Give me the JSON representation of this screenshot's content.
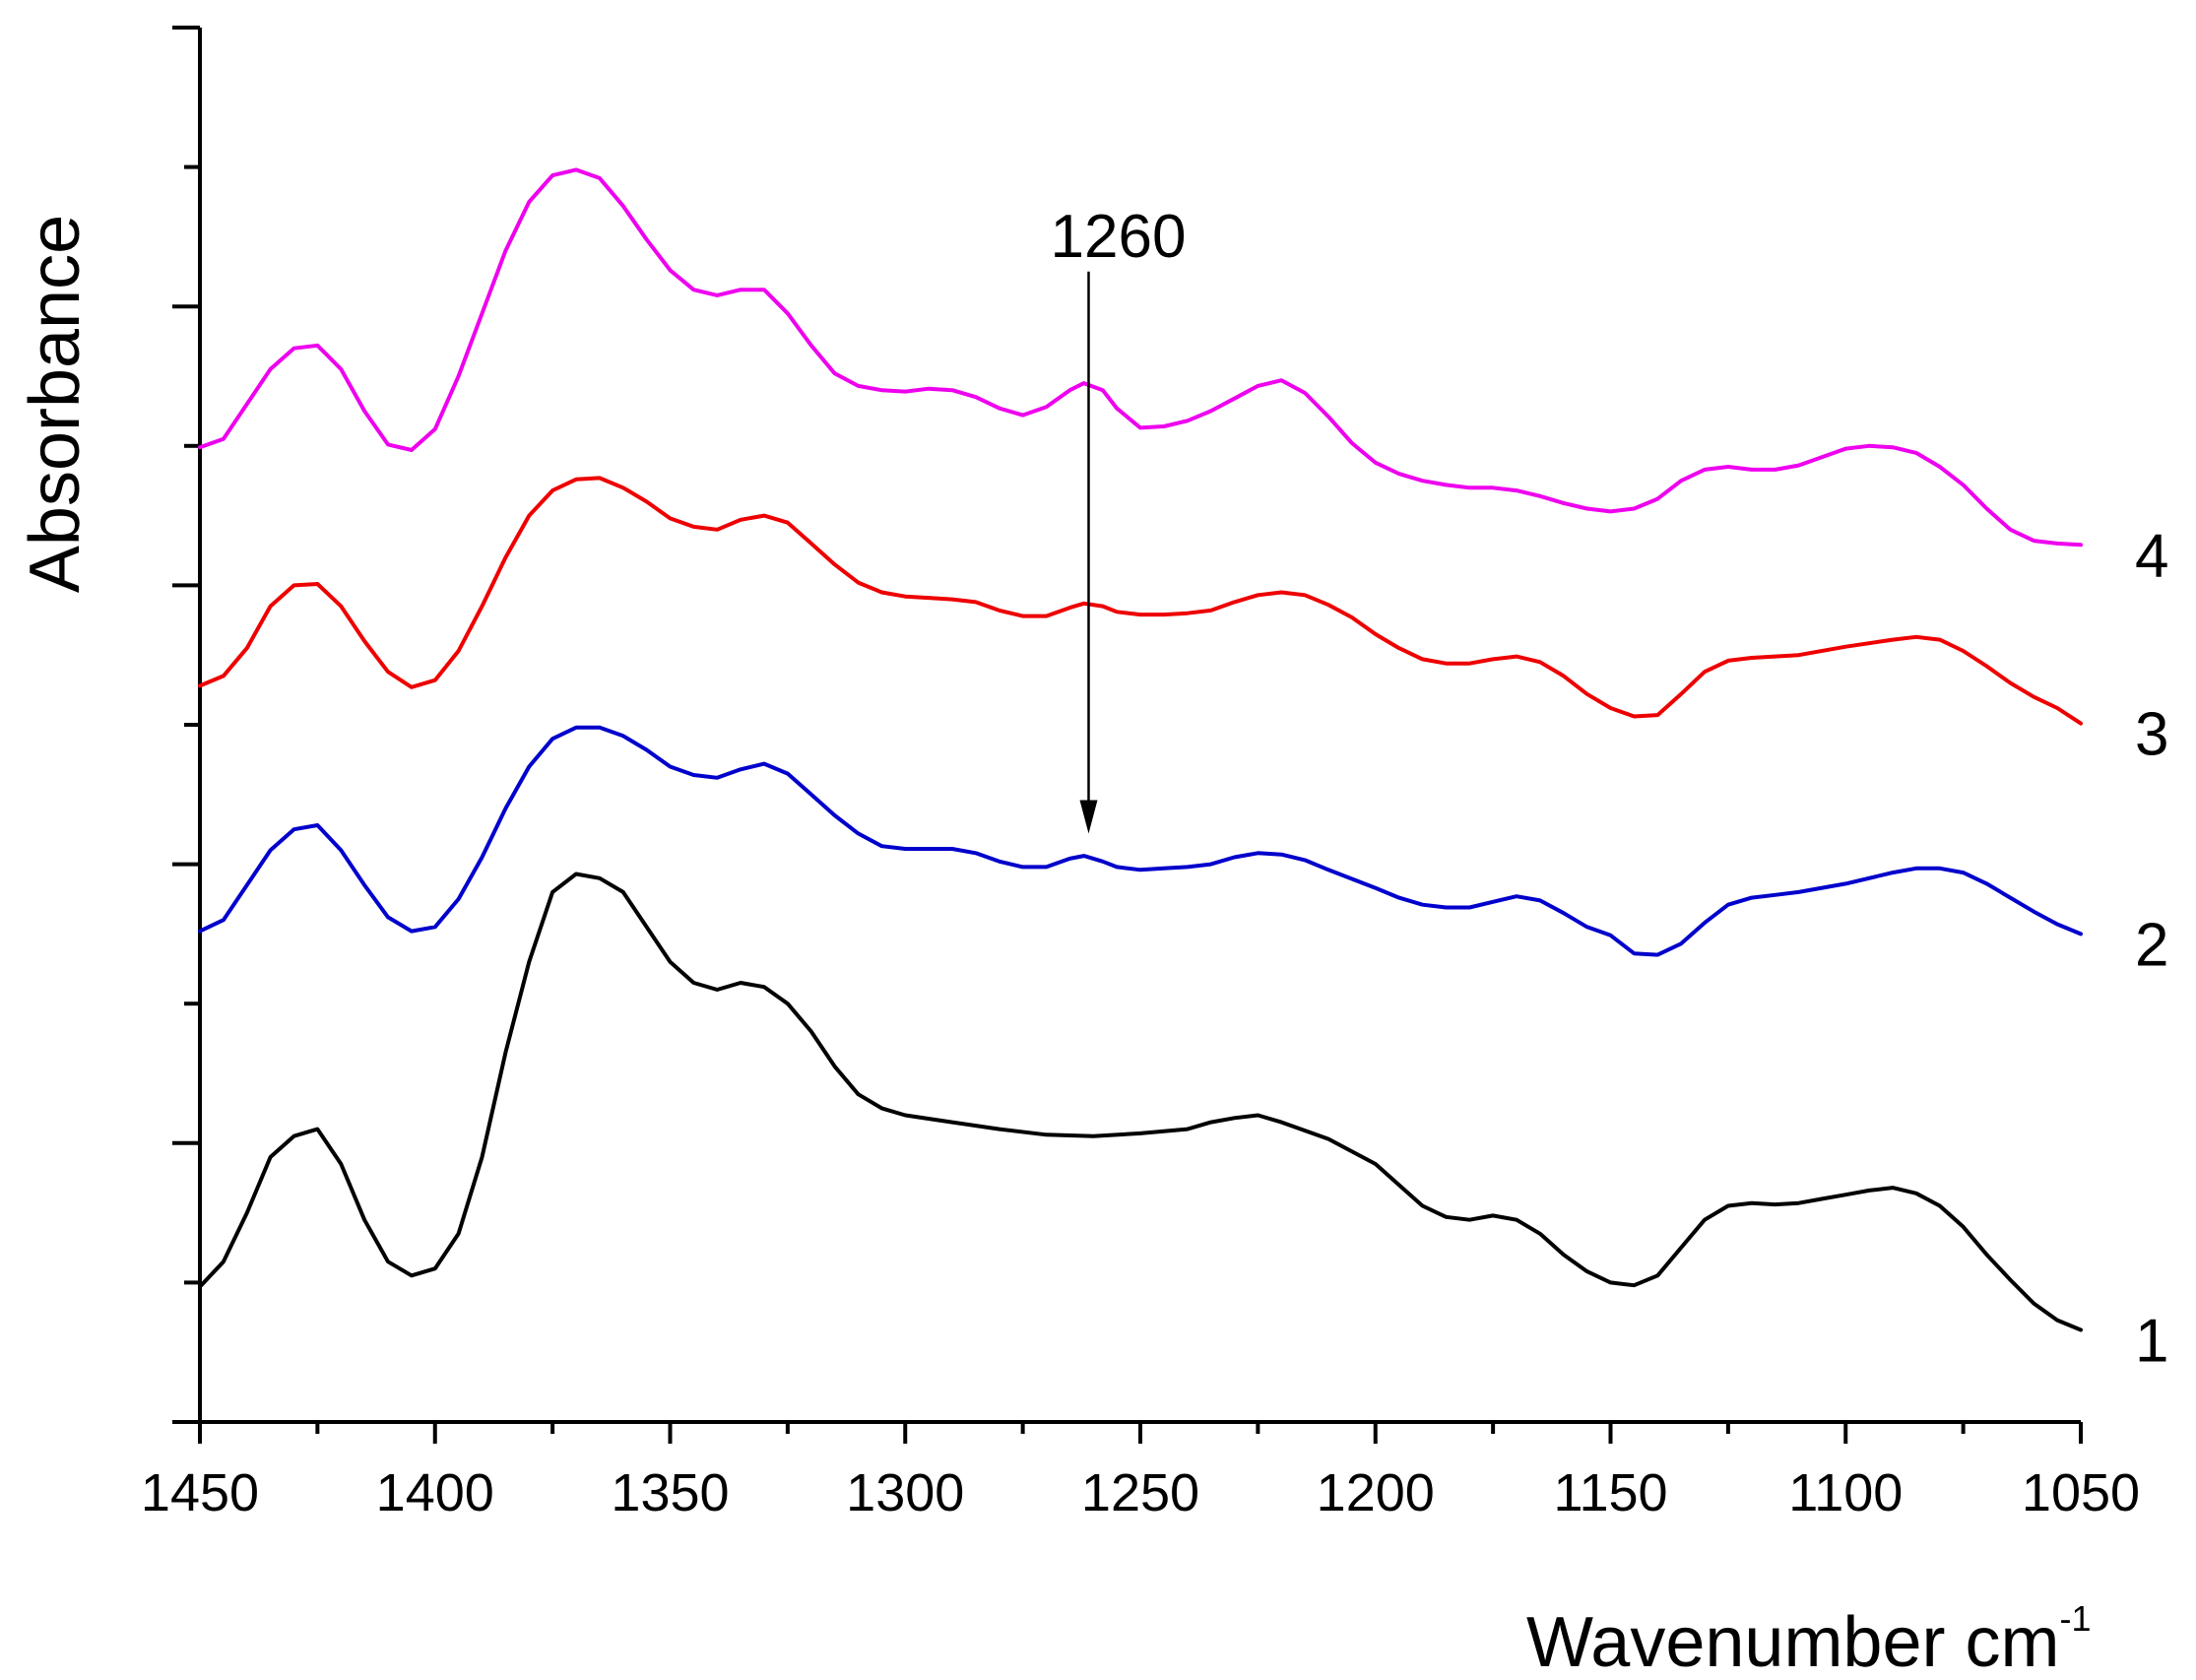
{
  "chart_data": {
    "type": "line",
    "title": "",
    "xlabel": "Wavenumber cm",
    "xlabel_superscript": "-1",
    "ylabel": "Absorbance",
    "x_reversed": true,
    "xlim": [
      1450,
      1050
    ],
    "ylim": [
      0,
      10
    ],
    "x_ticks": [
      1450,
      1400,
      1350,
      1300,
      1250,
      1200,
      1150,
      1100,
      1050
    ],
    "x_tick_labels": [
      "1450",
      "1400",
      "1350",
      "1300",
      "1250",
      "1200",
      "1150",
      "1100",
      "1050"
    ],
    "y_ticks": [
      0,
      1,
      2,
      3,
      4,
      5,
      6,
      7,
      8,
      9,
      10
    ],
    "y_tick_labels_shown": false,
    "grid": false,
    "series": [
      {
        "name": "1",
        "color": "#000000",
        "points": [
          [
            1450,
            0.97
          ],
          [
            1445,
            1.15
          ],
          [
            1440,
            1.5
          ],
          [
            1435,
            1.9
          ],
          [
            1430,
            2.05
          ],
          [
            1425,
            2.1
          ],
          [
            1420,
            1.85
          ],
          [
            1415,
            1.45
          ],
          [
            1410,
            1.15
          ],
          [
            1405,
            1.05
          ],
          [
            1400,
            1.1
          ],
          [
            1395,
            1.35
          ],
          [
            1390,
            1.9
          ],
          [
            1385,
            2.65
          ],
          [
            1380,
            3.3
          ],
          [
            1375,
            3.8
          ],
          [
            1370,
            3.93
          ],
          [
            1365,
            3.9
          ],
          [
            1360,
            3.8
          ],
          [
            1355,
            3.55
          ],
          [
            1350,
            3.3
          ],
          [
            1345,
            3.15
          ],
          [
            1340,
            3.1
          ],
          [
            1335,
            3.15
          ],
          [
            1330,
            3.12
          ],
          [
            1325,
            3.0
          ],
          [
            1320,
            2.8
          ],
          [
            1315,
            2.55
          ],
          [
            1310,
            2.35
          ],
          [
            1305,
            2.25
          ],
          [
            1300,
            2.2
          ],
          [
            1290,
            2.15
          ],
          [
            1280,
            2.1
          ],
          [
            1270,
            2.06
          ],
          [
            1260,
            2.05
          ],
          [
            1250,
            2.07
          ],
          [
            1240,
            2.1
          ],
          [
            1235,
            2.15
          ],
          [
            1230,
            2.18
          ],
          [
            1225,
            2.2
          ],
          [
            1220,
            2.15
          ],
          [
            1210,
            2.03
          ],
          [
            1200,
            1.85
          ],
          [
            1195,
            1.7
          ],
          [
            1190,
            1.55
          ],
          [
            1185,
            1.47
          ],
          [
            1180,
            1.45
          ],
          [
            1175,
            1.48
          ],
          [
            1170,
            1.45
          ],
          [
            1165,
            1.35
          ],
          [
            1160,
            1.2
          ],
          [
            1155,
            1.08
          ],
          [
            1150,
            1.0
          ],
          [
            1145,
            0.98
          ],
          [
            1140,
            1.05
          ],
          [
            1135,
            1.25
          ],
          [
            1130,
            1.45
          ],
          [
            1125,
            1.55
          ],
          [
            1120,
            1.57
          ],
          [
            1115,
            1.56
          ],
          [
            1110,
            1.57
          ],
          [
            1105,
            1.6
          ],
          [
            1100,
            1.63
          ],
          [
            1095,
            1.66
          ],
          [
            1090,
            1.68
          ],
          [
            1085,
            1.64
          ],
          [
            1080,
            1.55
          ],
          [
            1075,
            1.4
          ],
          [
            1070,
            1.2
          ],
          [
            1065,
            1.02
          ],
          [
            1060,
            0.85
          ],
          [
            1055,
            0.73
          ],
          [
            1050,
            0.66
          ]
        ]
      },
      {
        "name": "2",
        "color": "#0000cc",
        "points": [
          [
            1450,
            3.52
          ],
          [
            1445,
            3.6
          ],
          [
            1440,
            3.85
          ],
          [
            1435,
            4.1
          ],
          [
            1430,
            4.25
          ],
          [
            1425,
            4.28
          ],
          [
            1420,
            4.1
          ],
          [
            1415,
            3.85
          ],
          [
            1410,
            3.62
          ],
          [
            1405,
            3.52
          ],
          [
            1400,
            3.55
          ],
          [
            1395,
            3.75
          ],
          [
            1390,
            4.05
          ],
          [
            1385,
            4.4
          ],
          [
            1380,
            4.7
          ],
          [
            1375,
            4.9
          ],
          [
            1370,
            4.98
          ],
          [
            1365,
            4.98
          ],
          [
            1360,
            4.92
          ],
          [
            1355,
            4.82
          ],
          [
            1350,
            4.7
          ],
          [
            1345,
            4.64
          ],
          [
            1340,
            4.62
          ],
          [
            1335,
            4.68
          ],
          [
            1330,
            4.72
          ],
          [
            1325,
            4.65
          ],
          [
            1320,
            4.5
          ],
          [
            1315,
            4.35
          ],
          [
            1310,
            4.22
          ],
          [
            1305,
            4.13
          ],
          [
            1300,
            4.11
          ],
          [
            1290,
            4.11
          ],
          [
            1285,
            4.08
          ],
          [
            1280,
            4.02
          ],
          [
            1275,
            3.98
          ],
          [
            1270,
            3.98
          ],
          [
            1265,
            4.04
          ],
          [
            1262,
            4.06
          ],
          [
            1258,
            4.02
          ],
          [
            1255,
            3.98
          ],
          [
            1250,
            3.96
          ],
          [
            1245,
            3.97
          ],
          [
            1240,
            3.98
          ],
          [
            1235,
            4.0
          ],
          [
            1230,
            4.05
          ],
          [
            1225,
            4.08
          ],
          [
            1220,
            4.07
          ],
          [
            1215,
            4.03
          ],
          [
            1210,
            3.96
          ],
          [
            1200,
            3.83
          ],
          [
            1195,
            3.76
          ],
          [
            1190,
            3.71
          ],
          [
            1185,
            3.69
          ],
          [
            1180,
            3.69
          ],
          [
            1175,
            3.73
          ],
          [
            1170,
            3.77
          ],
          [
            1165,
            3.74
          ],
          [
            1160,
            3.65
          ],
          [
            1155,
            3.55
          ],
          [
            1150,
            3.49
          ],
          [
            1145,
            3.36
          ],
          [
            1140,
            3.35
          ],
          [
            1135,
            3.43
          ],
          [
            1130,
            3.58
          ],
          [
            1125,
            3.71
          ],
          [
            1120,
            3.76
          ],
          [
            1115,
            3.78
          ],
          [
            1110,
            3.8
          ],
          [
            1100,
            3.86
          ],
          [
            1090,
            3.94
          ],
          [
            1085,
            3.97
          ],
          [
            1080,
            3.97
          ],
          [
            1075,
            3.94
          ],
          [
            1070,
            3.86
          ],
          [
            1065,
            3.76
          ],
          [
            1060,
            3.66
          ],
          [
            1055,
            3.57
          ],
          [
            1050,
            3.5
          ]
        ]
      },
      {
        "name": "3",
        "color": "#ee0000",
        "points": [
          [
            1450,
            5.28
          ],
          [
            1445,
            5.35
          ],
          [
            1440,
            5.55
          ],
          [
            1435,
            5.85
          ],
          [
            1430,
            6.0
          ],
          [
            1425,
            6.01
          ],
          [
            1420,
            5.85
          ],
          [
            1415,
            5.6
          ],
          [
            1410,
            5.38
          ],
          [
            1405,
            5.27
          ],
          [
            1400,
            5.32
          ],
          [
            1395,
            5.53
          ],
          [
            1390,
            5.85
          ],
          [
            1385,
            6.2
          ],
          [
            1380,
            6.5
          ],
          [
            1375,
            6.68
          ],
          [
            1370,
            6.76
          ],
          [
            1365,
            6.77
          ],
          [
            1360,
            6.7
          ],
          [
            1355,
            6.6
          ],
          [
            1350,
            6.48
          ],
          [
            1345,
            6.42
          ],
          [
            1340,
            6.4
          ],
          [
            1335,
            6.47
          ],
          [
            1330,
            6.5
          ],
          [
            1325,
            6.45
          ],
          [
            1320,
            6.3
          ],
          [
            1315,
            6.15
          ],
          [
            1310,
            6.02
          ],
          [
            1305,
            5.95
          ],
          [
            1300,
            5.92
          ],
          [
            1295,
            5.91
          ],
          [
            1290,
            5.9
          ],
          [
            1285,
            5.88
          ],
          [
            1280,
            5.82
          ],
          [
            1275,
            5.78
          ],
          [
            1270,
            5.78
          ],
          [
            1265,
            5.84
          ],
          [
            1262,
            5.87
          ],
          [
            1258,
            5.85
          ],
          [
            1255,
            5.81
          ],
          [
            1250,
            5.79
          ],
          [
            1245,
            5.79
          ],
          [
            1240,
            5.8
          ],
          [
            1235,
            5.82
          ],
          [
            1230,
            5.88
          ],
          [
            1225,
            5.93
          ],
          [
            1220,
            5.95
          ],
          [
            1215,
            5.93
          ],
          [
            1210,
            5.86
          ],
          [
            1205,
            5.77
          ],
          [
            1200,
            5.65
          ],
          [
            1195,
            5.55
          ],
          [
            1190,
            5.47
          ],
          [
            1185,
            5.44
          ],
          [
            1180,
            5.44
          ],
          [
            1175,
            5.47
          ],
          [
            1170,
            5.49
          ],
          [
            1165,
            5.45
          ],
          [
            1160,
            5.35
          ],
          [
            1155,
            5.22
          ],
          [
            1150,
            5.12
          ],
          [
            1145,
            5.06
          ],
          [
            1140,
            5.07
          ],
          [
            1135,
            5.22
          ],
          [
            1130,
            5.38
          ],
          [
            1125,
            5.46
          ],
          [
            1120,
            5.48
          ],
          [
            1110,
            5.5
          ],
          [
            1100,
            5.56
          ],
          [
            1090,
            5.61
          ],
          [
            1085,
            5.63
          ],
          [
            1080,
            5.61
          ],
          [
            1075,
            5.53
          ],
          [
            1070,
            5.42
          ],
          [
            1065,
            5.3
          ],
          [
            1060,
            5.2
          ],
          [
            1055,
            5.12
          ],
          [
            1050,
            5.01
          ]
        ]
      },
      {
        "name": "4",
        "color": "#ee00ee",
        "points": [
          [
            1450,
            6.99
          ],
          [
            1445,
            7.05
          ],
          [
            1440,
            7.3
          ],
          [
            1435,
            7.55
          ],
          [
            1430,
            7.7
          ],
          [
            1425,
            7.72
          ],
          [
            1420,
            7.55
          ],
          [
            1415,
            7.25
          ],
          [
            1410,
            7.01
          ],
          [
            1405,
            6.97
          ],
          [
            1400,
            7.12
          ],
          [
            1395,
            7.5
          ],
          [
            1390,
            7.95
          ],
          [
            1385,
            8.4
          ],
          [
            1380,
            8.75
          ],
          [
            1375,
            8.94
          ],
          [
            1370,
            8.98
          ],
          [
            1365,
            8.92
          ],
          [
            1360,
            8.72
          ],
          [
            1355,
            8.48
          ],
          [
            1350,
            8.26
          ],
          [
            1345,
            8.12
          ],
          [
            1340,
            8.08
          ],
          [
            1335,
            8.12
          ],
          [
            1330,
            8.12
          ],
          [
            1325,
            7.95
          ],
          [
            1320,
            7.72
          ],
          [
            1315,
            7.52
          ],
          [
            1310,
            7.43
          ],
          [
            1305,
            7.4
          ],
          [
            1300,
            7.39
          ],
          [
            1295,
            7.41
          ],
          [
            1290,
            7.4
          ],
          [
            1285,
            7.35
          ],
          [
            1280,
            7.27
          ],
          [
            1275,
            7.22
          ],
          [
            1270,
            7.28
          ],
          [
            1265,
            7.4
          ],
          [
            1262,
            7.45
          ],
          [
            1258,
            7.4
          ],
          [
            1255,
            7.27
          ],
          [
            1250,
            7.13
          ],
          [
            1245,
            7.14
          ],
          [
            1240,
            7.18
          ],
          [
            1235,
            7.25
          ],
          [
            1230,
            7.34
          ],
          [
            1225,
            7.43
          ],
          [
            1220,
            7.47
          ],
          [
            1215,
            7.38
          ],
          [
            1210,
            7.21
          ],
          [
            1205,
            7.02
          ],
          [
            1200,
            6.88
          ],
          [
            1195,
            6.8
          ],
          [
            1190,
            6.75
          ],
          [
            1185,
            6.72
          ],
          [
            1180,
            6.7
          ],
          [
            1175,
            6.7
          ],
          [
            1170,
            6.68
          ],
          [
            1165,
            6.64
          ],
          [
            1160,
            6.59
          ],
          [
            1155,
            6.55
          ],
          [
            1150,
            6.53
          ],
          [
            1145,
            6.55
          ],
          [
            1140,
            6.62
          ],
          [
            1135,
            6.75
          ],
          [
            1130,
            6.83
          ],
          [
            1125,
            6.85
          ],
          [
            1120,
            6.83
          ],
          [
            1115,
            6.83
          ],
          [
            1110,
            6.86
          ],
          [
            1105,
            6.92
          ],
          [
            1100,
            6.98
          ],
          [
            1095,
            7.0
          ],
          [
            1090,
            6.99
          ],
          [
            1085,
            6.95
          ],
          [
            1080,
            6.85
          ],
          [
            1075,
            6.72
          ],
          [
            1070,
            6.55
          ],
          [
            1065,
            6.4
          ],
          [
            1060,
            6.32
          ],
          [
            1055,
            6.3
          ],
          [
            1050,
            6.29
          ]
        ]
      }
    ],
    "annotations": [
      {
        "text": "1260",
        "arrow_x": 1261,
        "arrow_y_from": 8.25,
        "arrow_y_to": 4.22
      }
    ]
  }
}
